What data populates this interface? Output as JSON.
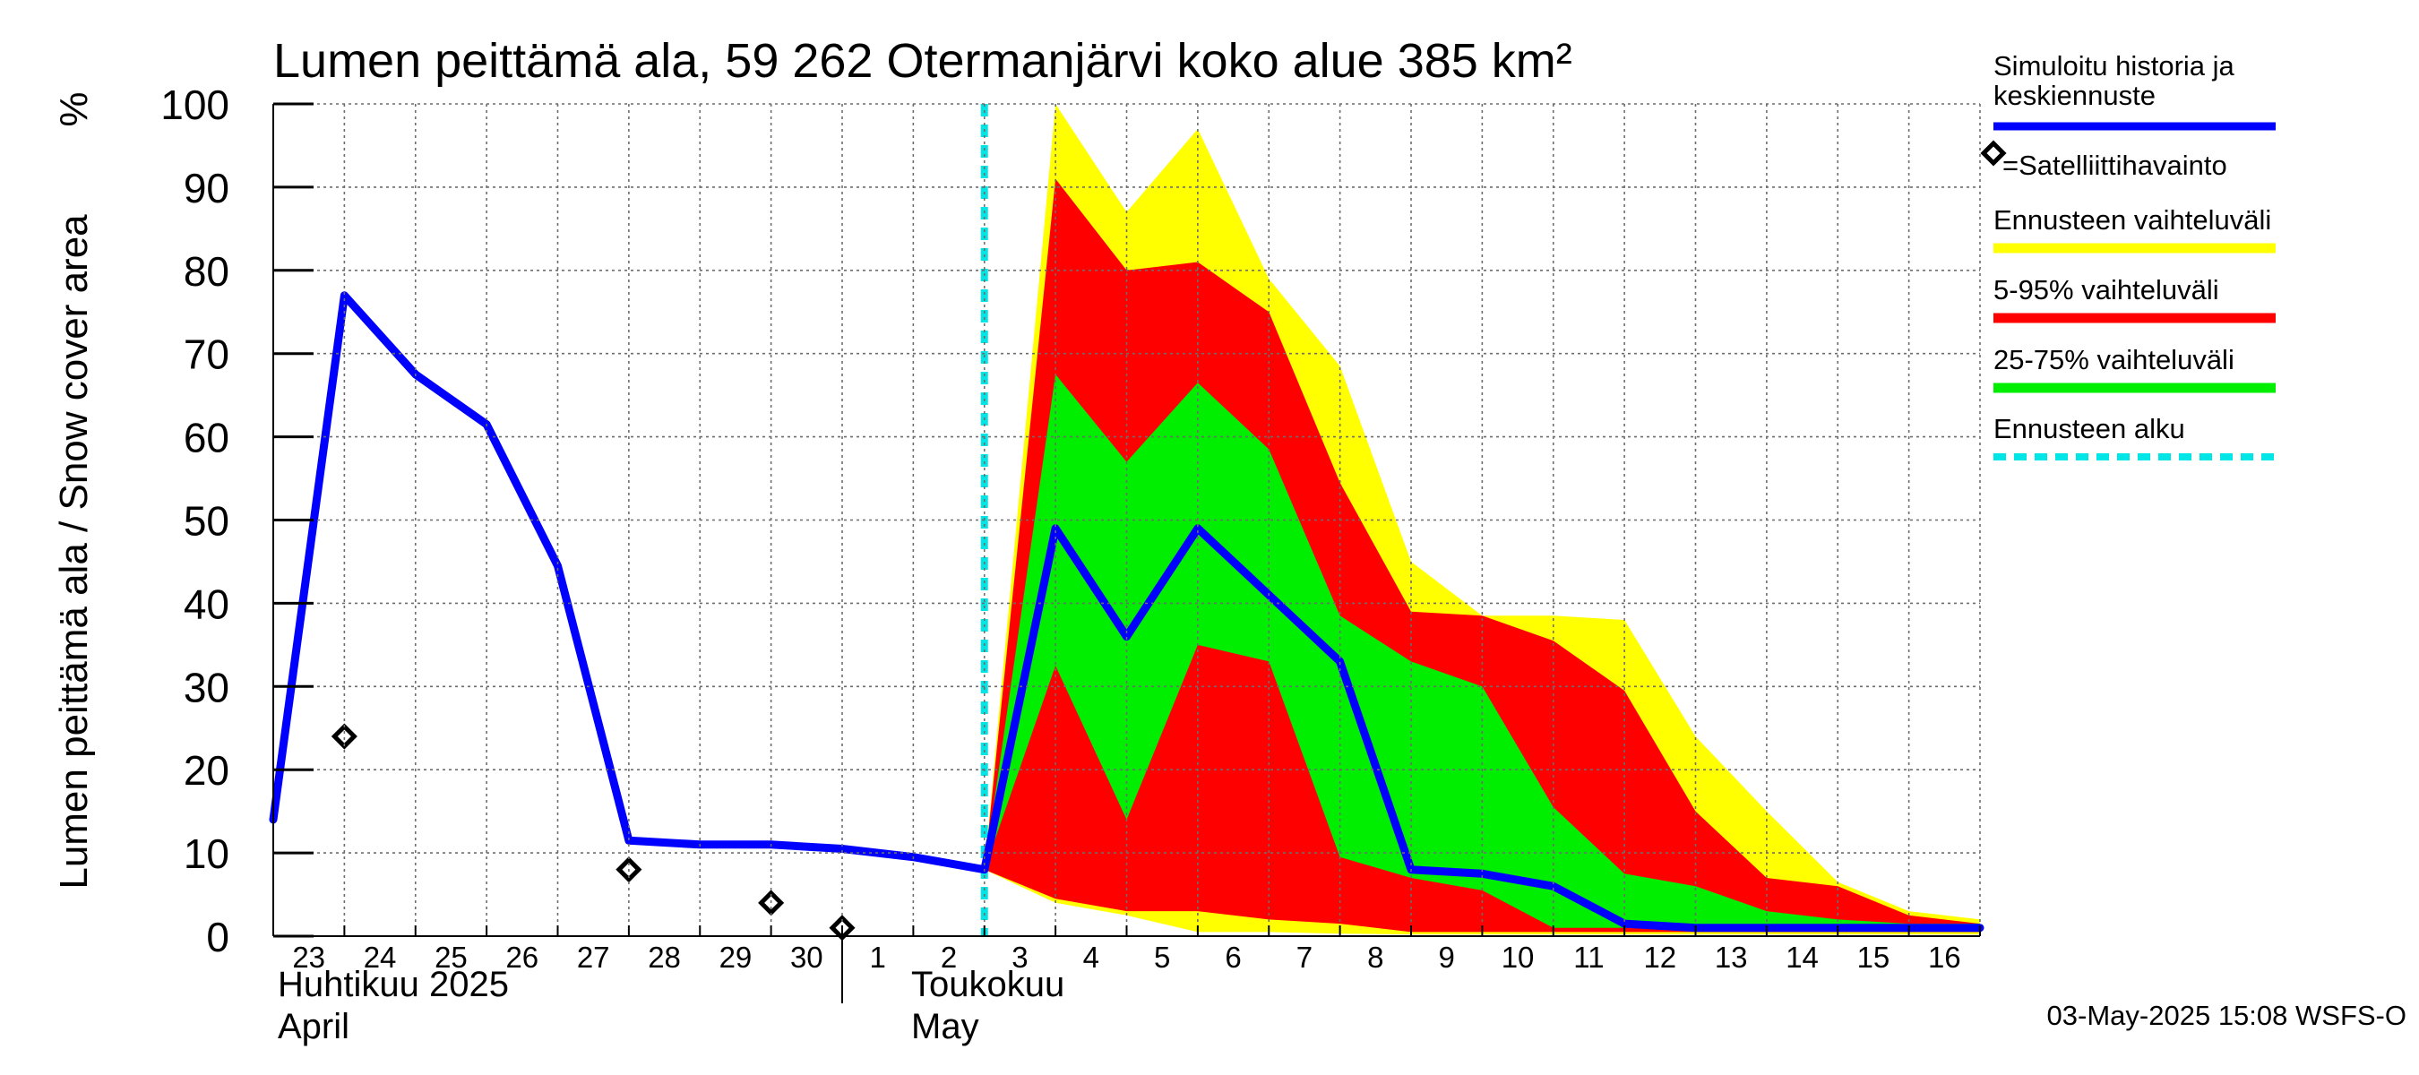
{
  "chart_data": {
    "type": "area",
    "title": "Lumen peittämä ala, 59 262 Otermanjärvi koko alue 385 km²",
    "ylabel": "Lumen peittämä ala / Snow cover area",
    "yunit": "%",
    "ylim": [
      0,
      100
    ],
    "yticks": [
      0,
      10,
      20,
      30,
      40,
      50,
      60,
      70,
      80,
      90,
      100
    ],
    "xlim": [
      "2025-04-23",
      "2025-05-17"
    ],
    "x_tick_labels": [
      "23",
      "24",
      "25",
      "26",
      "27",
      "28",
      "29",
      "30",
      "1",
      "2",
      "3",
      "4",
      "5",
      "6",
      "7",
      "8",
      "9",
      "10",
      "11",
      "12",
      "13",
      "14",
      "15",
      "16"
    ],
    "month_labels": [
      {
        "date": "2025-04-23",
        "line1": "Huhtikuu  2025",
        "line2": "April"
      },
      {
        "date": "2025-05-01",
        "line1": "Toukokuu",
        "line2": "May"
      }
    ],
    "grid": true,
    "legend_position": "right",
    "forecast_start": "2025-05-03",
    "series": [
      {
        "name": "Simuloitu historia ja keskiennuste",
        "type": "line",
        "color": "#0000ff",
        "x": [
          "2025-04-23",
          "2025-04-24",
          "2025-04-25",
          "2025-04-26",
          "2025-04-27",
          "2025-04-28",
          "2025-04-29",
          "2025-04-30",
          "2025-05-01",
          "2025-05-02",
          "2025-05-03",
          "2025-05-04",
          "2025-05-05",
          "2025-05-06",
          "2025-05-07",
          "2025-05-08",
          "2025-05-09",
          "2025-05-10",
          "2025-05-11",
          "2025-05-12",
          "2025-05-13",
          "2025-05-14",
          "2025-05-15",
          "2025-05-16",
          "2025-05-17"
        ],
        "values": [
          14,
          77,
          67.5,
          61.5,
          44.5,
          11.5,
          11,
          11,
          10.5,
          9.5,
          8,
          49,
          36,
          49,
          41,
          33,
          8,
          7.5,
          6,
          1.5,
          1,
          1,
          1,
          1,
          1
        ]
      },
      {
        "name": "=Satelliittihavainto",
        "type": "scatter",
        "marker": "diamond",
        "x": [
          "2025-04-24",
          "2025-04-28",
          "2025-04-30",
          "2025-05-01"
        ],
        "values": [
          24,
          8,
          4,
          1
        ]
      },
      {
        "name": "Ennusteen vaihteluväli",
        "type": "band",
        "color": "#ffff00",
        "x": [
          "2025-05-03",
          "2025-05-04",
          "2025-05-05",
          "2025-05-06",
          "2025-05-07",
          "2025-05-08",
          "2025-05-09",
          "2025-05-10",
          "2025-05-11",
          "2025-05-12",
          "2025-05-13",
          "2025-05-14",
          "2025-05-15",
          "2025-05-16",
          "2025-05-17"
        ],
        "upper": [
          8,
          100,
          87,
          97,
          79,
          68.5,
          45,
          38.5,
          38.5,
          38,
          24,
          15,
          6.5,
          3,
          2
        ],
        "lower": [
          8,
          4,
          2.5,
          0.5,
          0.5,
          0.3,
          0.2,
          0.2,
          0.2,
          0.2,
          0.2,
          0.2,
          0.2,
          0.2,
          0.2
        ]
      },
      {
        "name": "5-95% vaihteluväli",
        "type": "band",
        "color": "#ff0000",
        "x": [
          "2025-05-03",
          "2025-05-04",
          "2025-05-05",
          "2025-05-06",
          "2025-05-07",
          "2025-05-08",
          "2025-05-09",
          "2025-05-10",
          "2025-05-11",
          "2025-05-12",
          "2025-05-13",
          "2025-05-14",
          "2025-05-15",
          "2025-05-16",
          "2025-05-17"
        ],
        "upper": [
          8,
          91,
          80,
          81,
          75,
          54.5,
          39,
          38.5,
          35.5,
          29.5,
          15,
          7,
          6,
          2.5,
          1.5
        ],
        "lower": [
          8,
          4.5,
          3,
          3,
          2,
          1.5,
          0.5,
          0.5,
          0.5,
          0.5,
          0.5,
          0.5,
          0.5,
          0.5,
          0.5
        ]
      },
      {
        "name": "25-75% vaihteluväli",
        "type": "band",
        "color": "#00ee00",
        "x": [
          "2025-05-03",
          "2025-05-04",
          "2025-05-05",
          "2025-05-06",
          "2025-05-07",
          "2025-05-08",
          "2025-05-09",
          "2025-05-10",
          "2025-05-11",
          "2025-05-12",
          "2025-05-13",
          "2025-05-14",
          "2025-05-15",
          "2025-05-16",
          "2025-05-17"
        ],
        "upper": [
          8,
          67.5,
          57,
          66.5,
          58.5,
          38.5,
          33,
          30,
          15.5,
          7.5,
          6,
          3,
          2,
          1.5,
          1.5
        ],
        "lower": [
          8,
          32.5,
          14,
          35,
          33,
          9.5,
          7,
          5.5,
          1,
          1,
          1,
          1,
          1,
          1,
          1
        ]
      },
      {
        "name": "Ennusteen alku",
        "type": "vline",
        "color": "#00e5e5",
        "x": "2025-05-03"
      }
    ]
  },
  "footer": "03-May-2025 15:08 WSFS-O"
}
